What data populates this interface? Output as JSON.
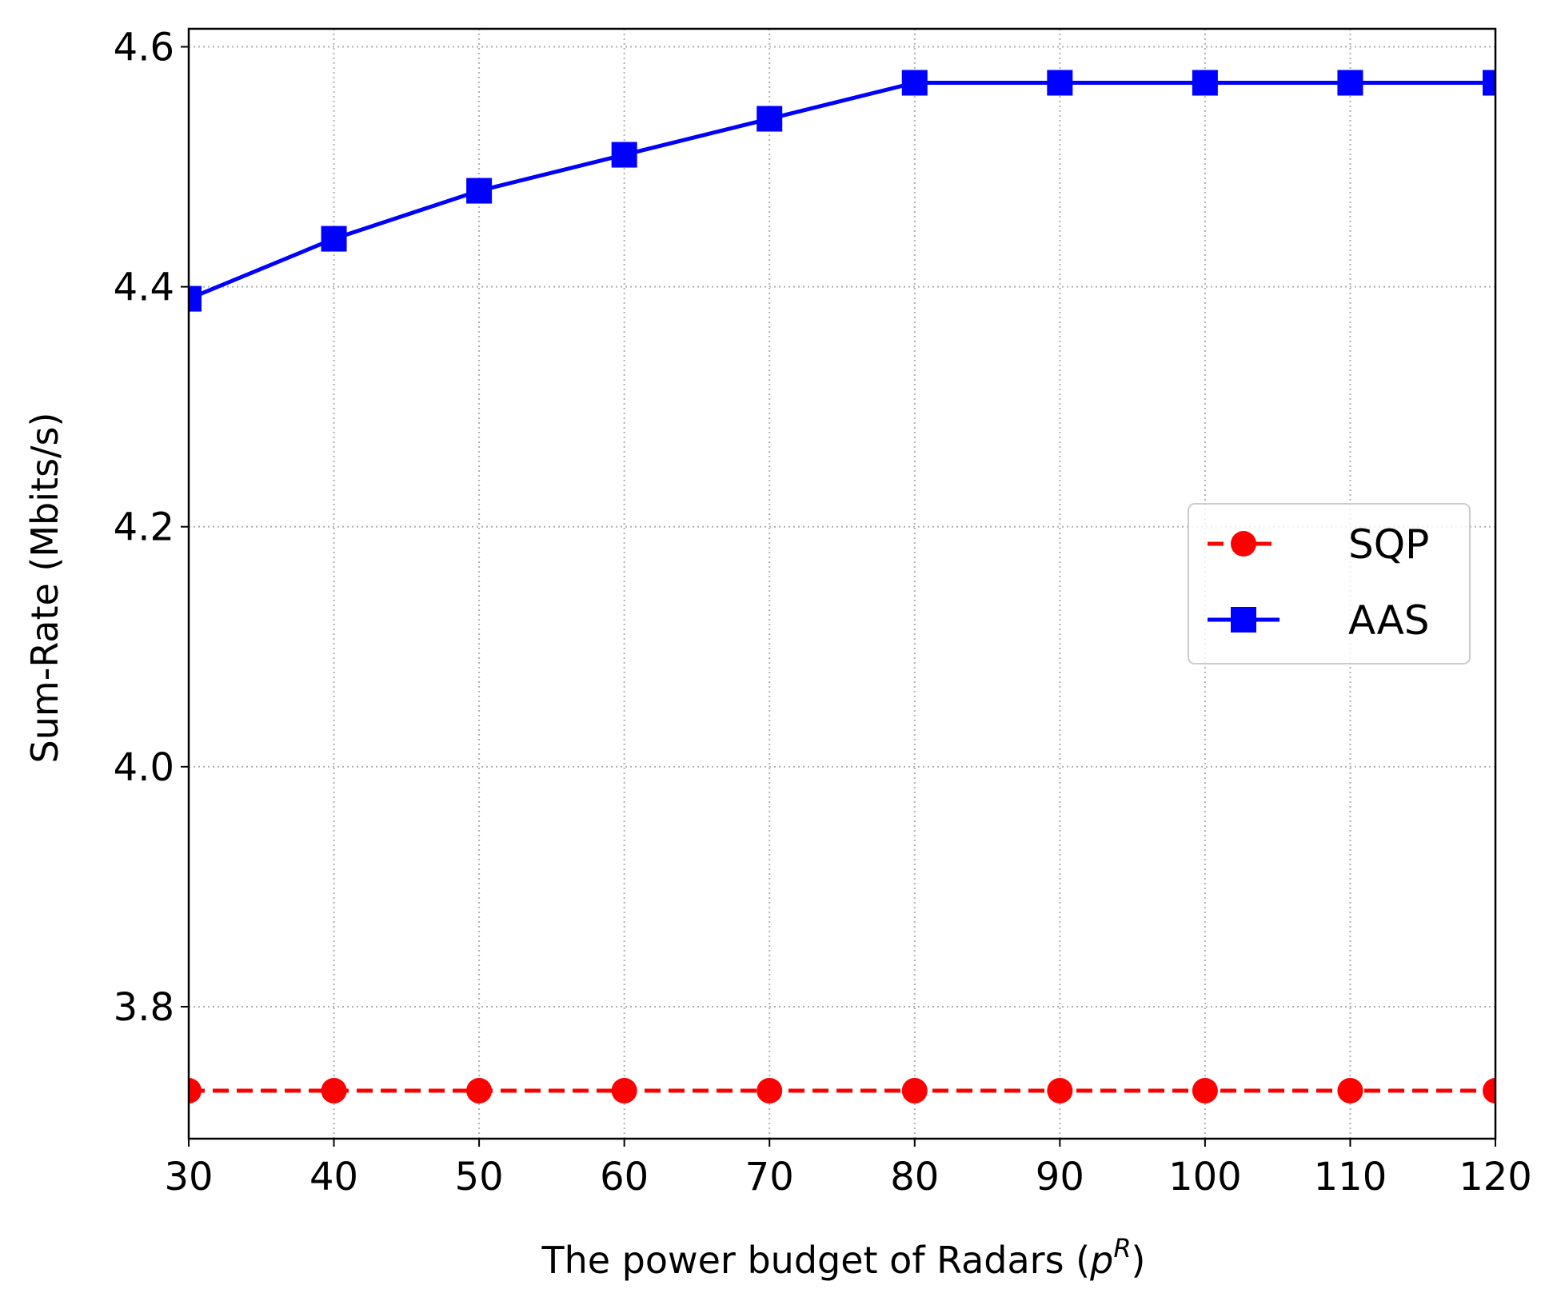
{
  "chart_data": {
    "type": "line",
    "title": "",
    "xlabel": "The power budget of Radars (",
    "xlabel_symbol": "p",
    "xlabel_superscript": "R",
    "xlabel_close": ")",
    "ylabel": "Sum-Rate (Mbits/s)",
    "x": [
      30,
      40,
      50,
      60,
      70,
      80,
      90,
      100,
      110,
      120
    ],
    "xlim": [
      30,
      120
    ],
    "ylim": [
      3.69,
      4.615
    ],
    "xticks": [
      30,
      40,
      50,
      60,
      70,
      80,
      90,
      100,
      110,
      120
    ],
    "xtick_labels": [
      "30",
      "40",
      "50",
      "60",
      "70",
      "80",
      "90",
      "100",
      "110",
      "120"
    ],
    "yticks": [
      3.8,
      4.0,
      4.2,
      4.4,
      4.6
    ],
    "ytick_labels": [
      "3.8",
      "4.0",
      "4.2",
      "4.4",
      "4.6"
    ],
    "grid": true,
    "legend_position": "center-right",
    "series": [
      {
        "name": "SQP",
        "values": [
          3.73,
          3.73,
          3.73,
          3.73,
          3.73,
          3.73,
          3.73,
          3.73,
          3.73,
          3.73
        ],
        "color": "#ff0000",
        "line_style": "dashed",
        "marker": "circle"
      },
      {
        "name": "AAS",
        "values": [
          4.39,
          4.44,
          4.48,
          4.51,
          4.54,
          4.57,
          4.57,
          4.57,
          4.57,
          4.57
        ],
        "color": "#0000ff",
        "line_style": "solid",
        "marker": "square"
      }
    ]
  }
}
